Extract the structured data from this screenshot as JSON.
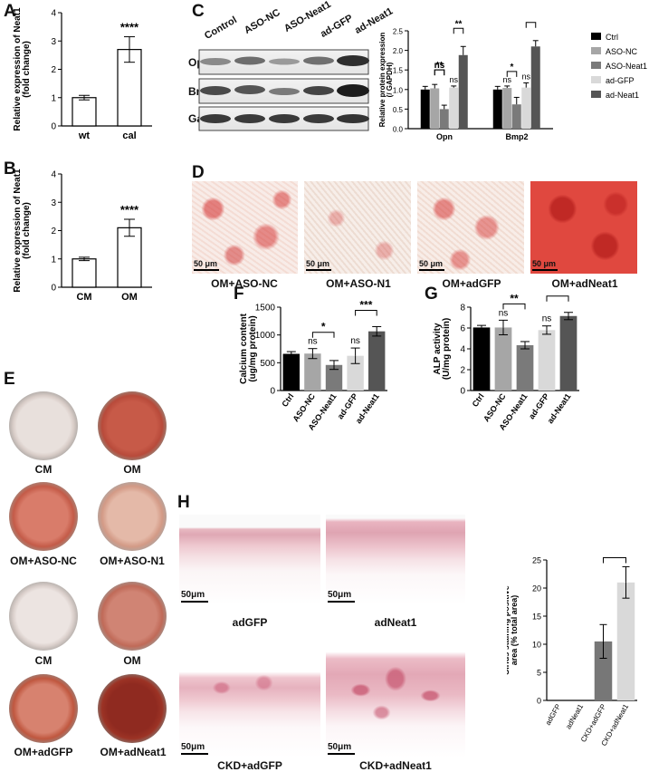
{
  "panel_labels": {
    "A": "A",
    "B": "B",
    "C": "C",
    "D": "D",
    "E": "E",
    "F": "F",
    "G": "G",
    "H": "H"
  },
  "chart_data": [
    {
      "id": "A",
      "type": "bar",
      "categories": [
        "wt",
        "cal"
      ],
      "values": [
        1.0,
        2.7
      ],
      "errors": [
        0.08,
        0.45
      ],
      "ylabel": "Relative expression of Neat1 (fold change)",
      "ylim": [
        0,
        4
      ],
      "yticks": [
        0,
        1,
        2,
        3,
        4
      ],
      "significance": "****",
      "colors": [
        "#ffffff",
        "#ffffff"
      ]
    },
    {
      "id": "B",
      "type": "bar",
      "categories": [
        "CM",
        "OM"
      ],
      "values": [
        1.0,
        2.1
      ],
      "errors": [
        0.06,
        0.3
      ],
      "ylabel": "Relative expression of Neat1 (fold change)",
      "ylim": [
        0,
        4
      ],
      "yticks": [
        0,
        1,
        2,
        3,
        4
      ],
      "significance": "****",
      "colors": [
        "#ffffff",
        "#ffffff"
      ]
    },
    {
      "id": "C",
      "type": "bar",
      "categories": [
        "Opn",
        "Bmp2"
      ],
      "series": [
        {
          "name": "Ctrl",
          "values": [
            1.0,
            1.0
          ],
          "errors": [
            0.08,
            0.08
          ],
          "color": "#000000"
        },
        {
          "name": "ASO-NC",
          "values": [
            1.03,
            1.04
          ],
          "errors": [
            0.1,
            0.05
          ],
          "color": "#a6a6a6"
        },
        {
          "name": "ASO-Neat1",
          "values": [
            0.5,
            0.62
          ],
          "errors": [
            0.1,
            0.18
          ],
          "color": "#7a7a7a"
        },
        {
          "name": "ad-GFP",
          "values": [
            1.05,
            1.05
          ],
          "errors": [
            0.04,
            0.12
          ],
          "color": "#d9d9d9"
        },
        {
          "name": "ad-Neat1",
          "values": [
            1.88,
            2.1
          ],
          "errors": [
            0.22,
            0.15
          ],
          "color": "#555555"
        }
      ],
      "ylabel": "Relative protein expression (/ GAPDH)",
      "ylim": [
        0,
        2.5
      ],
      "yticks": [
        0.0,
        0.5,
        1.0,
        1.5,
        2.0,
        2.5
      ],
      "annotations": [
        {
          "group": "Opn",
          "from": 1,
          "to": 2,
          "text": "**"
        },
        {
          "group": "Opn",
          "from": 1,
          "to": 2,
          "text": "ns",
          "above": 1
        },
        {
          "group": "Opn",
          "from": 3,
          "to": 4,
          "text": "**"
        },
        {
          "group": "Opn",
          "text": "ns",
          "above": 3
        },
        {
          "group": "Bmp2",
          "from": 1,
          "to": 2,
          "text": "*"
        },
        {
          "group": "Bmp2",
          "text": "ns",
          "above": 1
        },
        {
          "group": "Bmp2",
          "from": 3,
          "to": 4,
          "text": "***"
        },
        {
          "group": "Bmp2",
          "text": "ns",
          "above": 3
        }
      ]
    },
    {
      "id": "F",
      "type": "bar",
      "categories": [
        "Ctrl",
        "ASO-NC",
        "ASO-Neat1",
        "ad-GFP",
        "ad-Neat1"
      ],
      "values": [
        660,
        665,
        460,
        625,
        1065
      ],
      "errors": [
        40,
        90,
        80,
        140,
        85
      ],
      "colors": [
        "#000000",
        "#a6a6a6",
        "#7a7a7a",
        "#d9d9d9",
        "#555555"
      ],
      "ylabel": "Calcium content (ug/mg protein)",
      "ylim": [
        0,
        1500
      ],
      "yticks": [
        0,
        500,
        1000,
        1500
      ],
      "annotations": [
        {
          "text": "ns",
          "above": 1
        },
        {
          "text": "*",
          "from": 1,
          "to": 2
        },
        {
          "text": "ns",
          "above": 3
        },
        {
          "text": "***",
          "from": 3,
          "to": 4
        }
      ]
    },
    {
      "id": "G",
      "type": "bar",
      "categories": [
        "Ctrl",
        "ASO-NC",
        "ASO-Neat1",
        "ad-GFP",
        "ad-Neat1"
      ],
      "values": [
        6.05,
        6.05,
        4.35,
        5.8,
        7.15
      ],
      "errors": [
        0.2,
        0.7,
        0.35,
        0.4,
        0.35
      ],
      "colors": [
        "#000000",
        "#a6a6a6",
        "#7a7a7a",
        "#d9d9d9",
        "#555555"
      ],
      "ylabel": "ALP activity (U/mg protein)",
      "ylim": [
        0,
        8
      ],
      "yticks": [
        0,
        2,
        4,
        6,
        8
      ],
      "annotations": [
        {
          "text": "ns",
          "above": 1
        },
        {
          "text": "**",
          "from": 1,
          "to": 2
        },
        {
          "text": "ns",
          "above": 3
        },
        {
          "text": "*",
          "from": 3,
          "to": 4
        }
      ]
    },
    {
      "id": "H",
      "type": "bar",
      "categories": [
        "adGFP",
        "adNeat1",
        "CKD+adGFP",
        "CKD+adNeat1"
      ],
      "values": [
        0,
        0,
        10.5,
        21
      ],
      "errors": [
        0,
        0,
        3,
        2.8
      ],
      "colors": [
        "#777777",
        "#777777",
        "#777777",
        "#d9d9d9"
      ],
      "ylabel": "Sirius staining positive area (% total area)",
      "ylim": [
        0,
        25
      ],
      "yticks": [
        0,
        5,
        10,
        15,
        20,
        25
      ],
      "annotations": [
        {
          "text": "***",
          "from": 2,
          "to": 3
        }
      ]
    }
  ],
  "blot": {
    "lanes": [
      "Control",
      "ASO-NC",
      "ASO-Neat1",
      "ad-GFP",
      "ad-Neat1"
    ],
    "rows": [
      "Opn",
      "Bmp2",
      "Gapdh"
    ]
  },
  "panel_D": {
    "captions": [
      "OM+ASO-NC",
      "OM+ASO-N1",
      "OM+adGFP",
      "OM+adNeat1"
    ],
    "scalebar": "50 μm"
  },
  "panel_E": {
    "captions": [
      "CM",
      "OM",
      "OM+ASO-NC",
      "OM+ASO-N1",
      "CM",
      "OM",
      "OM+adGFP",
      "OM+adNeat1"
    ]
  },
  "panel_H_images": {
    "captions": [
      "adGFP",
      "adNeat1",
      "CKD+adGFP",
      "CKD+adNeat1"
    ],
    "scalebar": "50μm"
  }
}
